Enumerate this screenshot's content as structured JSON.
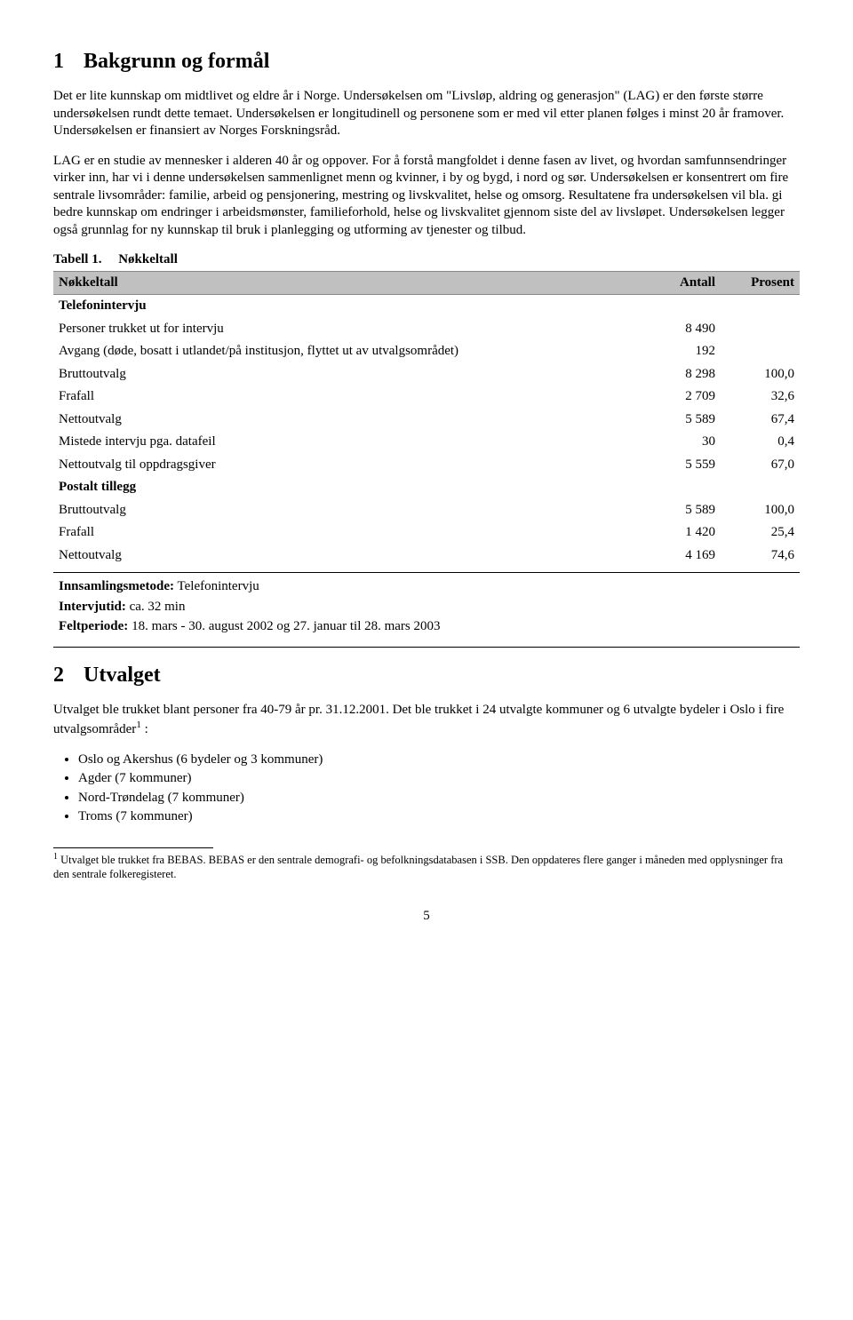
{
  "section1": {
    "number": "1",
    "title": "Bakgrunn og formål",
    "para1": "Det er lite kunnskap om midtlivet og eldre år i Norge. Undersøkelsen om \"Livsløp, aldring og generasjon\" (LAG) er den første større undersøkelsen rundt dette temaet. Undersøkelsen er longitudinell og personene som er med vil etter planen følges i minst 20 år framover. Undersøkelsen er finansiert av Norges Forskningsråd.",
    "para2": "LAG er en studie av mennesker i alderen 40 år og oppover. For å forstå mangfoldet i denne fasen av livet, og hvordan samfunnsendringer virker inn, har vi i denne undersøkelsen sammenlignet menn og kvinner, i by og bygd, i nord og sør. Undersøkelsen er konsentrert om fire sentrale livsområder: familie, arbeid og pensjonering, mestring og livskvalitet, helse og omsorg. Resultatene fra undersøkelsen vil bla. gi bedre kunnskap om endringer i arbeidsmønster, familieforhold, helse og livskvalitet gjennom siste del av livsløpet. Undersøkelsen legger også grunnlag for ny kunnskap til bruk i planlegging og utforming av tjenester og tilbud."
  },
  "table1": {
    "caption_prefix": "Tabell 1.",
    "caption": "Nøkkeltall",
    "columns": [
      "Nøkkeltall",
      "Antall",
      "Prosent"
    ],
    "group1_title": "Telefonintervju",
    "rows1": [
      {
        "label": "Personer trukket ut for intervju",
        "antall": "8 490",
        "prosent": ""
      },
      {
        "label": "Avgang (døde, bosatt i utlandet/på institusjon, flyttet ut av utvalgsområdet)",
        "antall": "192",
        "prosent": ""
      },
      {
        "label": "Bruttoutvalg",
        "antall": "8 298",
        "prosent": "100,0"
      },
      {
        "label": "Frafall",
        "antall": "2 709",
        "prosent": "32,6"
      },
      {
        "label": "Nettoutvalg",
        "antall": "5 589",
        "prosent": "67,4"
      },
      {
        "label": "Mistede intervju pga. datafeil",
        "antall": "30",
        "prosent": "0,4"
      },
      {
        "label": "Nettoutvalg til oppdragsgiver",
        "antall": "5 559",
        "prosent": "67,0"
      }
    ],
    "group2_title": "Postalt tillegg",
    "rows2": [
      {
        "label": "Bruttoutvalg",
        "antall": "5 589",
        "prosent": "100,0"
      },
      {
        "label": "Frafall",
        "antall": "1 420",
        "prosent": "25,4"
      },
      {
        "label": "Nettoutvalg",
        "antall": "4 169",
        "prosent": "74,6"
      }
    ],
    "meta": {
      "method_label": "Innsamlingsmetode:",
      "method_value": "Telefonintervju",
      "time_label": "Intervjutid:",
      "time_value": "ca. 32 min",
      "period_label": "Feltperiode:",
      "period_value": "18. mars - 30. august 2002 og 27. januar til 28. mars 2003"
    }
  },
  "section2": {
    "number": "2",
    "title": "Utvalget",
    "para1_a": "Utvalget ble trukket blant personer fra 40-79 år pr. 31.12.2001. Det ble trukket i 24 utvalgte kommuner og 6 utvalgte bydeler i Oslo i fire utvalgsområder",
    "para1_b": " :",
    "bullets": [
      "Oslo og Akershus (6 bydeler og 3 kommuner)",
      "Agder (7 kommuner)",
      "Nord-Trøndelag (7 kommuner)",
      "Troms (7 kommuner)"
    ]
  },
  "footnote": {
    "marker": "1",
    "text": "Utvalget ble trukket fra BEBAS. BEBAS er den sentrale demografi- og befolkningsdatabasen i SSB. Den oppdateres flere ganger i måneden med opplysninger fra den sentrale folkeregisteret."
  },
  "page_number": "5"
}
